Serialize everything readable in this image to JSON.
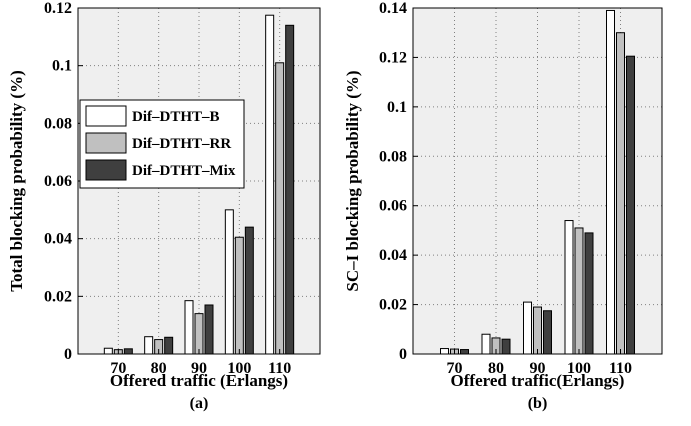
{
  "chart_data": [
    {
      "type": "bar",
      "panel_label": "(a)",
      "xlabel": "Offered traffic (Erlangs)",
      "ylabel": "Total blocking probability (%)",
      "categories": [
        "70",
        "80",
        "90",
        "100",
        "110"
      ],
      "ylim": [
        0,
        0.12
      ],
      "yticks": [
        "0",
        "0.02",
        "0.04",
        "0.06",
        "0.08",
        "0.1",
        "0.12"
      ],
      "ytick_values": [
        0,
        0.02,
        0.04,
        0.06,
        0.08,
        0.1,
        0.12
      ],
      "grid": true,
      "legend_position": "left",
      "series": [
        {
          "name": "Dif–DTHT–B",
          "color": "#ffffff",
          "values": [
            0.002,
            0.006,
            0.0185,
            0.05,
            0.1175
          ]
        },
        {
          "name": "Dif–DTHT–RR",
          "color": "#c0c0c0",
          "values": [
            0.0015,
            0.005,
            0.014,
            0.0405,
            0.101
          ]
        },
        {
          "name": "Dif–DTHT–Mix",
          "color": "#3f3f3f",
          "values": [
            0.0018,
            0.0058,
            0.017,
            0.044,
            0.114
          ]
        }
      ]
    },
    {
      "type": "bar",
      "panel_label": "(b)",
      "xlabel": "Offered traffic(Erlangs)",
      "ylabel": "SC–I blocking probability (%)",
      "categories": [
        "70",
        "80",
        "90",
        "100",
        "110"
      ],
      "ylim": [
        0,
        0.14
      ],
      "yticks": [
        "0",
        "0.02",
        "0.04",
        "0.06",
        "0.08",
        "0.1",
        "0.12",
        "0.14"
      ],
      "ytick_values": [
        0,
        0.02,
        0.04,
        0.06,
        0.08,
        0.1,
        0.12,
        0.14
      ],
      "grid": true,
      "series": [
        {
          "name": "Dif–DTHT–B",
          "color": "#ffffff",
          "values": [
            0.0022,
            0.008,
            0.021,
            0.054,
            0.139
          ]
        },
        {
          "name": "Dif–DTHT–RR",
          "color": "#c0c0c0",
          "values": [
            0.002,
            0.0065,
            0.019,
            0.051,
            0.13
          ]
        },
        {
          "name": "Dif–DTHT–Mix",
          "color": "#3f3f3f",
          "values": [
            0.0018,
            0.006,
            0.0175,
            0.049,
            0.1205
          ]
        }
      ]
    }
  ]
}
